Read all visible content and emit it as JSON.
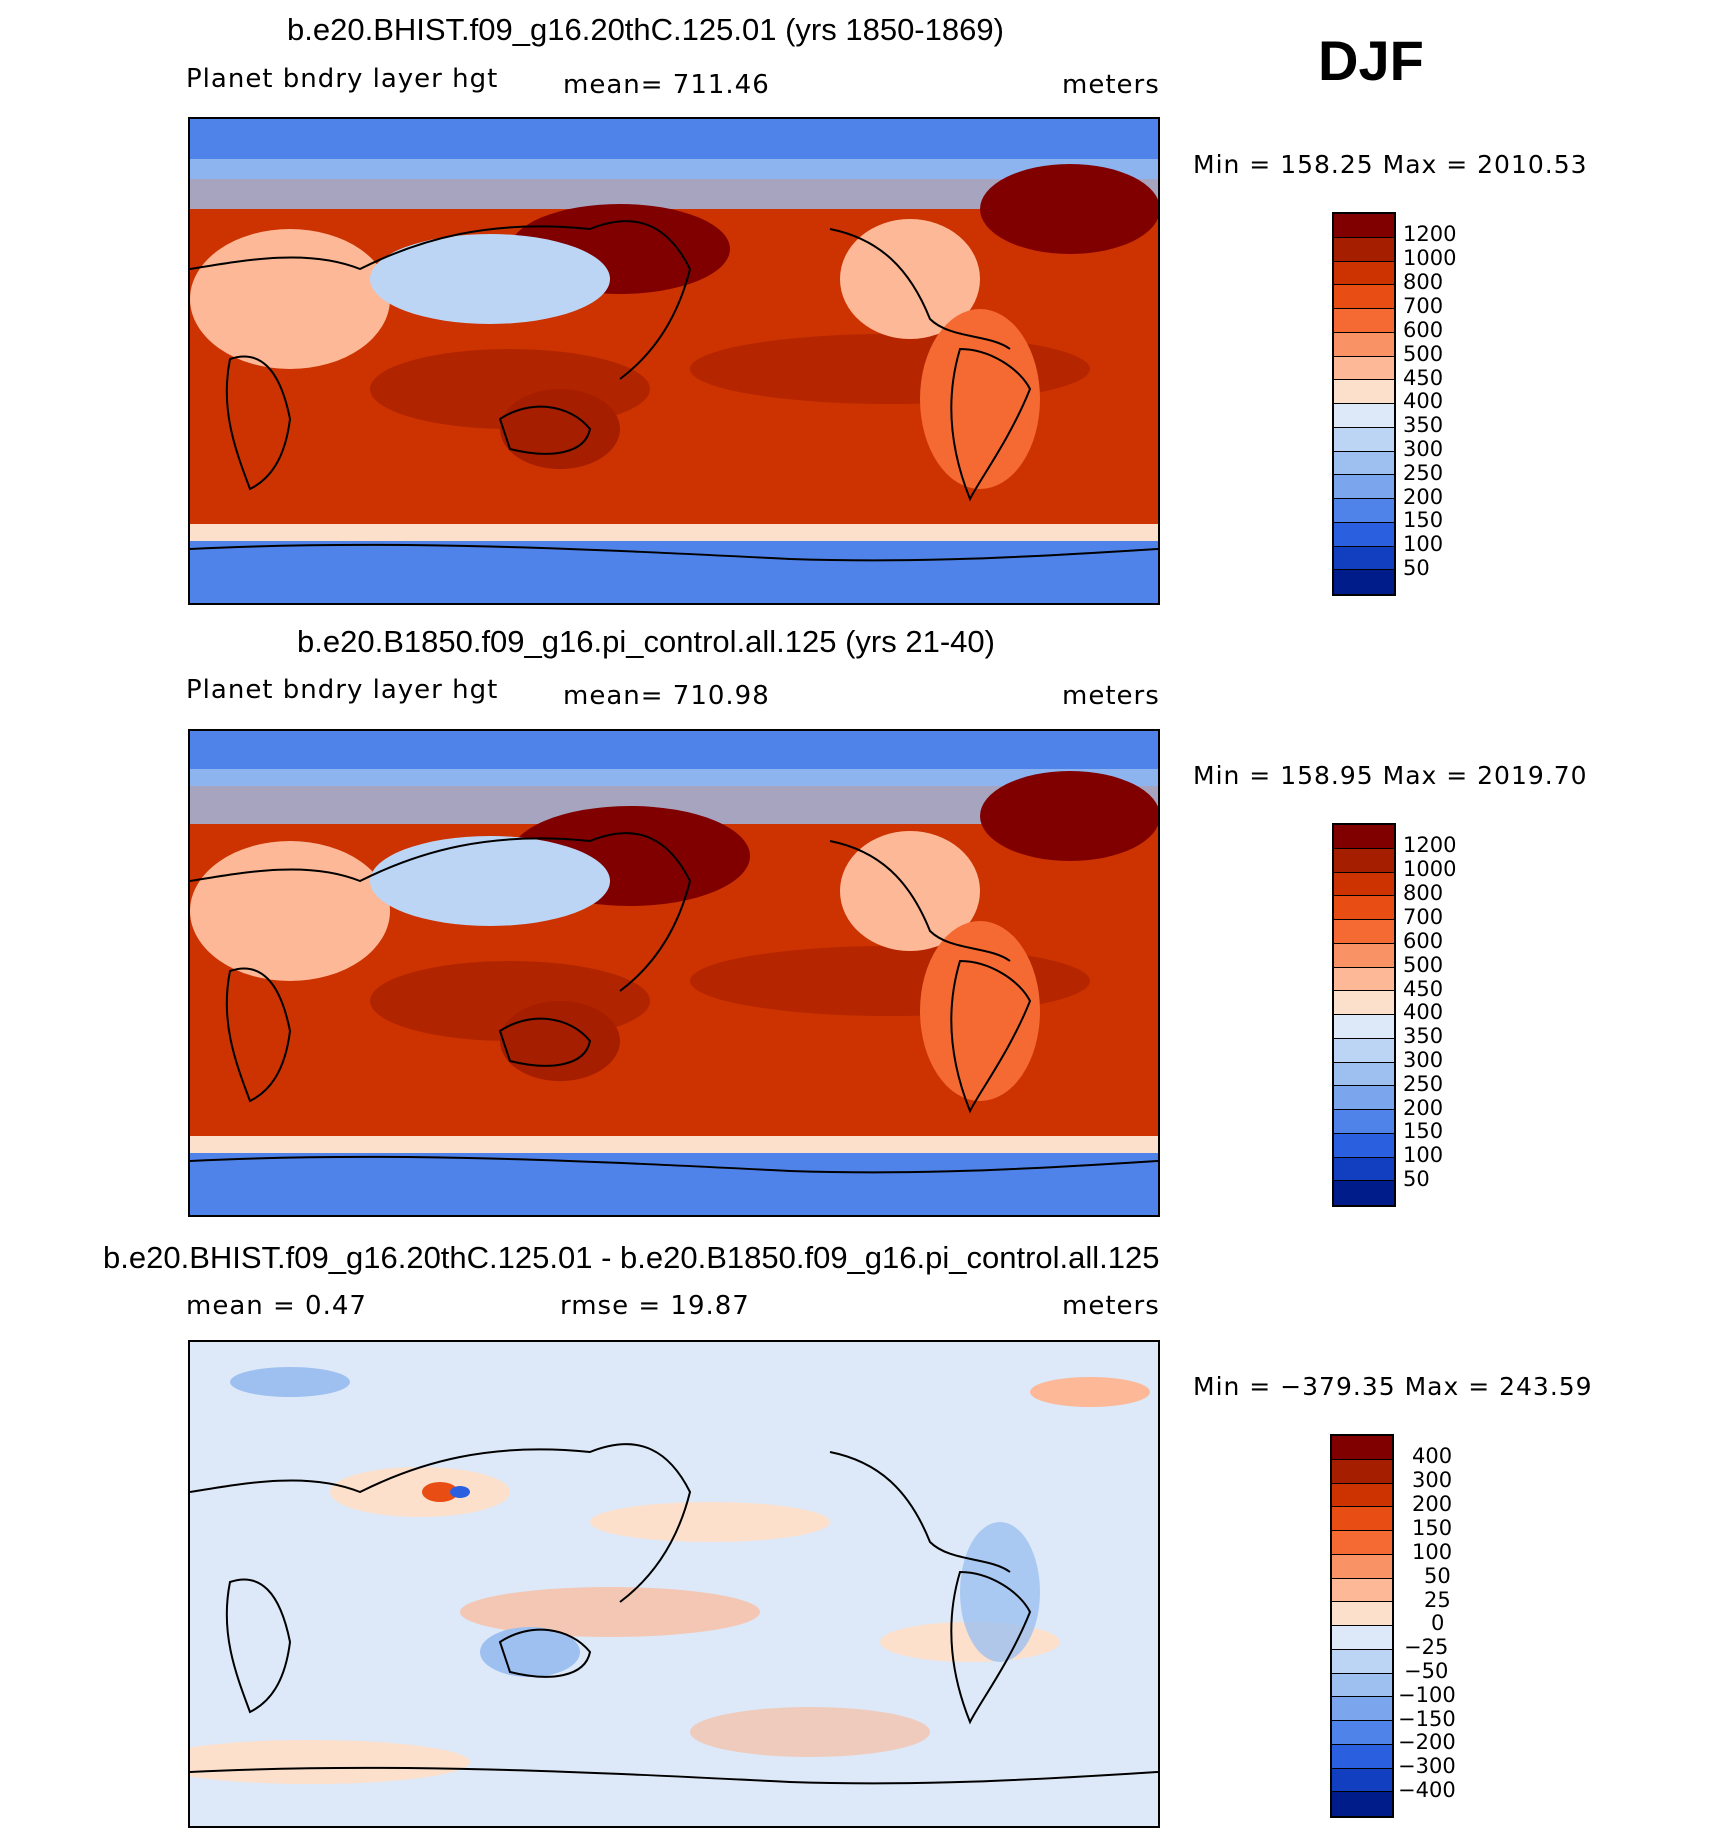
{
  "season": "DJF",
  "panels": [
    {
      "title": "b.e20.BHIST.f09_g16.20thC.125.01 (yrs 1850-1869)",
      "variable": "Planet bndry layer hgt",
      "stat": "mean=  711.46",
      "units": "meters",
      "minmax": "Min  =  158.25  Max  =  2010.53",
      "colorbar": {
        "labels": [
          "1200",
          "1000",
          "800",
          "700",
          "600",
          "500",
          "450",
          "400",
          "350",
          "300",
          "250",
          "200",
          "150",
          "100",
          "50"
        ],
        "colors": [
          "#800000",
          "#a51e00",
          "#cc3300",
          "#e84e14",
          "#f56a32",
          "#f99264",
          "#fcb897",
          "#fde0cc",
          "#dde9f8",
          "#bcd5f5",
          "#9ec0f0",
          "#7ba5ed",
          "#4f83ea",
          "#2a5fe0",
          "#123fc0",
          "#001c8a"
        ]
      }
    },
    {
      "title": "b.e20.B1850.f09_g16.pi_control.all.125 (yrs 21-40)",
      "variable": "Planet bndry layer hgt",
      "stat": "mean=  710.98",
      "units": "meters",
      "minmax": "Min  =  158.95  Max  =  2019.70",
      "colorbar": {
        "labels": [
          "1200",
          "1000",
          "800",
          "700",
          "600",
          "500",
          "450",
          "400",
          "350",
          "300",
          "250",
          "200",
          "150",
          "100",
          "50"
        ],
        "colors": [
          "#800000",
          "#a51e00",
          "#cc3300",
          "#e84e14",
          "#f56a32",
          "#f99264",
          "#fcb897",
          "#fde0cc",
          "#dde9f8",
          "#bcd5f5",
          "#9ec0f0",
          "#7ba5ed",
          "#4f83ea",
          "#2a5fe0",
          "#123fc0",
          "#001c8a"
        ]
      }
    },
    {
      "title": "b.e20.BHIST.f09_g16.20thC.125.01 - b.e20.B1850.f09_g16.pi_control.all.125",
      "stat_mean": "mean  =     0.47",
      "stat_rmse": "rmse  =     19.87",
      "units": "meters",
      "minmax": "Min  =  −379.35  Max  =  243.59",
      "colorbar": {
        "labels": [
          "400",
          "300",
          "200",
          "150",
          "100",
          "50",
          "25",
          "0",
          "−25",
          "−50",
          "−100",
          "−150",
          "−200",
          "−300",
          "−400"
        ],
        "colors": [
          "#800000",
          "#a51e00",
          "#cc3300",
          "#e84e14",
          "#f56a32",
          "#f99264",
          "#fcb897",
          "#fde0cc",
          "#dde9f8",
          "#bcd5f5",
          "#9ec0f0",
          "#7ba5ed",
          "#4f83ea",
          "#2a5fe0",
          "#123fc0",
          "#001c8a"
        ]
      }
    }
  ]
}
